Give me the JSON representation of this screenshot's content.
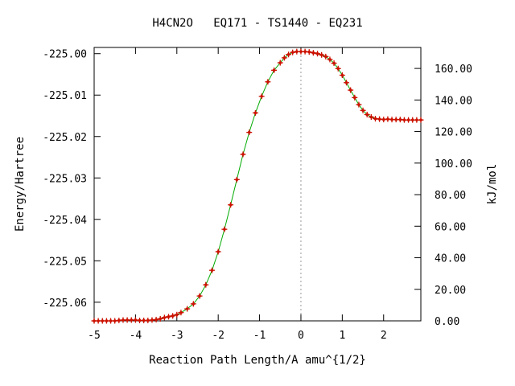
{
  "chart_data": {
    "type": "line",
    "title": "H4CN2O   EQ171 - TS1440 - EQ231",
    "xlabel": "Reaction Path Length/A amu^{1/2}",
    "ylabel": "Energy/Hartree",
    "y2label": "kJ/mol",
    "xlim": [
      -5.0,
      2.9
    ],
    "ylim": [
      -225.0645,
      -224.9985
    ],
    "y2lim": [
      0.0,
      173.3
    ],
    "y2_reference_hartree": -225.0645,
    "y2_scale_kj_per_hartree": 2625.5,
    "x_ticks": [
      -5,
      -4,
      -3,
      -2,
      -1,
      0,
      1,
      2
    ],
    "x_tick_labels": [
      "-5",
      "-4",
      "-3",
      "-2",
      "-1",
      "0",
      "1",
      "2"
    ],
    "y_ticks": [
      -225.06,
      -225.05,
      -225.04,
      -225.03,
      -225.02,
      -225.01,
      -225.0
    ],
    "y_tick_labels": [
      "-225.06",
      "-225.05",
      "-225.04",
      "-225.03",
      "-225.02",
      "-225.01",
      "-225.00"
    ],
    "y2_ticks": [
      0,
      20,
      40,
      60,
      80,
      100,
      120,
      140,
      160
    ],
    "y2_tick_labels": [
      "0.00",
      "20.00",
      "40.00",
      "60.00",
      "80.00",
      "100.00",
      "120.00",
      "140.00",
      "160.00"
    ],
    "ts_marker_x": 0,
    "grid": false,
    "colors": {
      "curve": "#00aa00",
      "points": "#cc1100",
      "marker_line": "#999999"
    },
    "series": [
      {
        "x": [
          -5.0,
          -4.9,
          -4.8,
          -4.7,
          -4.6,
          -4.5,
          -4.4,
          -4.3,
          -4.2,
          -4.1,
          -4.0,
          -3.9,
          -3.8,
          -3.7,
          -3.6,
          -3.5,
          -3.4,
          -3.3,
          -3.2,
          -3.1,
          -3.0,
          -2.9,
          -2.75,
          -2.6,
          -2.45,
          -2.3,
          -2.15,
          -2.0,
          -1.85,
          -1.7,
          -1.55,
          -1.4,
          -1.25,
          -1.1,
          -0.95,
          -0.8,
          -0.65,
          -0.5,
          -0.4,
          -0.3,
          -0.2,
          -0.1,
          0.0,
          0.1,
          0.2,
          0.3,
          0.4,
          0.5,
          0.6,
          0.7,
          0.8,
          0.9,
          1.0,
          1.1,
          1.2,
          1.3,
          1.4,
          1.5,
          1.6,
          1.7,
          1.8,
          1.9,
          2.0,
          2.1,
          2.2,
          2.3,
          2.4,
          2.5,
          2.6,
          2.7,
          2.8,
          2.9
        ],
        "y": [
          -225.0645,
          -225.0645,
          -225.0645,
          -225.0645,
          -225.0645,
          -225.0645,
          -225.0644,
          -225.0643,
          -225.0643,
          -225.0643,
          -225.0643,
          -225.0644,
          -225.0644,
          -225.0644,
          -225.0643,
          -225.0642,
          -225.064,
          -225.0637,
          -225.0635,
          -225.0633,
          -225.063,
          -225.0625,
          -225.0616,
          -225.0604,
          -225.0585,
          -225.0558,
          -225.0523,
          -225.0478,
          -225.0424,
          -225.0365,
          -225.0304,
          -225.0243,
          -225.019,
          -225.0143,
          -225.0103,
          -225.0068,
          -225.004,
          -225.0022,
          -225.001,
          -225.0002,
          -224.9997,
          -224.9995,
          -224.9995,
          -224.9995,
          -224.9996,
          -224.9998,
          -225.0,
          -225.0003,
          -225.0007,
          -225.0014,
          -225.0023,
          -225.0036,
          -225.0052,
          -225.007,
          -225.0088,
          -225.0106,
          -225.0123,
          -225.0137,
          -225.0147,
          -225.0153,
          -225.0157,
          -225.0158,
          -225.0159,
          -225.0158,
          -225.0159,
          -225.0159,
          -225.0159,
          -225.016,
          -225.016,
          -225.016,
          -225.016,
          -225.016
        ]
      }
    ]
  }
}
